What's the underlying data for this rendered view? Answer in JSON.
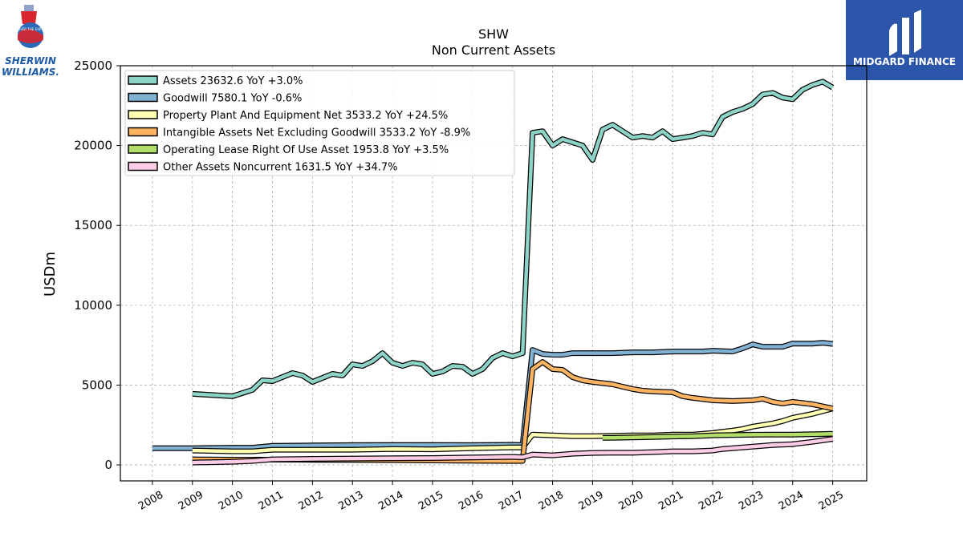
{
  "brand": {
    "left_logo_line1": "SHERWIN",
    "left_logo_line2": "WILLIAMS.",
    "left_logo_seal": "COVER THE EARTH",
    "right_logo_name": "MIDGARD FINANCE",
    "right_logo_bg": "#2a55a8"
  },
  "chart_data": {
    "type": "line",
    "title": "SHW",
    "subtitle": "Non Current  Assets",
    "ylabel": "USDm",
    "xlabel": "",
    "ylim": [
      -1000,
      25000
    ],
    "xlim": [
      2007.2,
      2025.85
    ],
    "yticks": [
      0,
      5000,
      10000,
      15000,
      20000,
      25000
    ],
    "xticks": [
      "2008",
      "2009",
      "2010",
      "2011",
      "2012",
      "2013",
      "2014",
      "2015",
      "2016",
      "2017",
      "2018",
      "2019",
      "2020",
      "2021",
      "2022",
      "2023",
      "2024",
      "2025"
    ],
    "grid": true,
    "legend_position": "top-left",
    "series": [
      {
        "name": "Assets  23632.6 YoY +3.0%",
        "color": "#8dd3c7",
        "points": [
          [
            2009.0,
            4450
          ],
          [
            2010.0,
            4300
          ],
          [
            2010.5,
            4700
          ],
          [
            2010.75,
            5300
          ],
          [
            2011.0,
            5250
          ],
          [
            2011.5,
            5750
          ],
          [
            2011.75,
            5600
          ],
          [
            2012.0,
            5200
          ],
          [
            2012.5,
            5700
          ],
          [
            2012.75,
            5600
          ],
          [
            2013.0,
            6300
          ],
          [
            2013.25,
            6200
          ],
          [
            2013.5,
            6500
          ],
          [
            2013.75,
            7000
          ],
          [
            2014.0,
            6400
          ],
          [
            2014.25,
            6200
          ],
          [
            2014.5,
            6400
          ],
          [
            2014.75,
            6300
          ],
          [
            2015.0,
            5700
          ],
          [
            2015.25,
            5850
          ],
          [
            2015.5,
            6200
          ],
          [
            2015.75,
            6150
          ],
          [
            2016.0,
            5700
          ],
          [
            2016.25,
            6000
          ],
          [
            2016.5,
            6700
          ],
          [
            2016.75,
            7000
          ],
          [
            2017.0,
            6800
          ],
          [
            2017.25,
            7000
          ],
          [
            2017.5,
            20800
          ],
          [
            2017.75,
            20900
          ],
          [
            2018.0,
            20000
          ],
          [
            2018.25,
            20400
          ],
          [
            2018.5,
            20200
          ],
          [
            2018.75,
            20000
          ],
          [
            2019.0,
            19100
          ],
          [
            2019.25,
            21000
          ],
          [
            2019.5,
            21300
          ],
          [
            2019.75,
            20900
          ],
          [
            2020.0,
            20500
          ],
          [
            2020.25,
            20600
          ],
          [
            2020.5,
            20500
          ],
          [
            2020.75,
            20900
          ],
          [
            2021.0,
            20400
          ],
          [
            2021.25,
            20500
          ],
          [
            2021.5,
            20600
          ],
          [
            2021.75,
            20800
          ],
          [
            2022.0,
            20700
          ],
          [
            2022.25,
            21800
          ],
          [
            2022.5,
            22100
          ],
          [
            2022.75,
            22300
          ],
          [
            2023.0,
            22600
          ],
          [
            2023.25,
            23200
          ],
          [
            2023.5,
            23300
          ],
          [
            2023.75,
            23000
          ],
          [
            2024.0,
            22900
          ],
          [
            2024.25,
            23500
          ],
          [
            2024.5,
            23800
          ],
          [
            2024.75,
            24000
          ],
          [
            2025.0,
            23632.6
          ]
        ]
      },
      {
        "name": "Goodwill  7580.1 YoY -0.6%",
        "color": "#80b1d3",
        "points": [
          [
            2008.0,
            1050
          ],
          [
            2009.0,
            1050
          ],
          [
            2010.0,
            1080
          ],
          [
            2010.5,
            1080
          ],
          [
            2011.0,
            1200
          ],
          [
            2012.0,
            1220
          ],
          [
            2013.0,
            1240
          ],
          [
            2014.0,
            1250
          ],
          [
            2015.0,
            1250
          ],
          [
            2016.0,
            1240
          ],
          [
            2017.0,
            1260
          ],
          [
            2017.25,
            1250
          ],
          [
            2017.5,
            7200
          ],
          [
            2017.75,
            6950
          ],
          [
            2018.0,
            6900
          ],
          [
            2018.25,
            6900
          ],
          [
            2018.5,
            7000
          ],
          [
            2019.0,
            7000
          ],
          [
            2019.5,
            7000
          ],
          [
            2020.0,
            7050
          ],
          [
            2020.5,
            7050
          ],
          [
            2021.0,
            7100
          ],
          [
            2021.5,
            7100
          ],
          [
            2021.75,
            7100
          ],
          [
            2022.0,
            7150
          ],
          [
            2022.5,
            7100
          ],
          [
            2022.75,
            7300
          ],
          [
            2023.0,
            7550
          ],
          [
            2023.25,
            7400
          ],
          [
            2023.75,
            7400
          ],
          [
            2024.0,
            7600
          ],
          [
            2024.5,
            7600
          ],
          [
            2024.75,
            7650
          ],
          [
            2025.0,
            7580.1
          ]
        ]
      },
      {
        "name": "Property Plant And Equipment Net  3533.2 YoY +24.5%",
        "color": "#ffffb3",
        "points": [
          [
            2009.0,
            900
          ],
          [
            2010.0,
            850
          ],
          [
            2010.5,
            850
          ],
          [
            2011.0,
            950
          ],
          [
            2012.0,
            950
          ],
          [
            2013.0,
            950
          ],
          [
            2014.0,
            1000
          ],
          [
            2015.0,
            980
          ],
          [
            2016.0,
            1050
          ],
          [
            2017.0,
            1100
          ],
          [
            2017.25,
            1100
          ],
          [
            2017.5,
            1900
          ],
          [
            2018.0,
            1850
          ],
          [
            2018.5,
            1800
          ],
          [
            2019.0,
            1800
          ],
          [
            2019.5,
            1820
          ],
          [
            2020.0,
            1850
          ],
          [
            2020.5,
            1850
          ],
          [
            2021.0,
            1900
          ],
          [
            2021.5,
            1900
          ],
          [
            2022.0,
            2000
          ],
          [
            2022.5,
            2150
          ],
          [
            2022.75,
            2250
          ],
          [
            2023.0,
            2400
          ],
          [
            2023.5,
            2600
          ],
          [
            2023.75,
            2750
          ],
          [
            2024.0,
            2950
          ],
          [
            2024.5,
            3200
          ],
          [
            2025.0,
            3533.2
          ]
        ]
      },
      {
        "name": "Intangible Assets Net Excluding Goodwill  3533.2 YoY -8.9%",
        "color": "#fdb462",
        "points": [
          [
            2009.0,
            350
          ],
          [
            2010.0,
            330
          ],
          [
            2011.0,
            330
          ],
          [
            2012.0,
            320
          ],
          [
            2013.0,
            310
          ],
          [
            2014.0,
            300
          ],
          [
            2015.0,
            280
          ],
          [
            2016.0,
            260
          ],
          [
            2017.0,
            250
          ],
          [
            2017.25,
            250
          ],
          [
            2017.5,
            6000
          ],
          [
            2017.75,
            6450
          ],
          [
            2018.0,
            6000
          ],
          [
            2018.25,
            5950
          ],
          [
            2018.5,
            5500
          ],
          [
            2018.75,
            5300
          ],
          [
            2019.0,
            5200
          ],
          [
            2019.5,
            5050
          ],
          [
            2020.0,
            4750
          ],
          [
            2020.25,
            4650
          ],
          [
            2020.5,
            4600
          ],
          [
            2021.0,
            4550
          ],
          [
            2021.25,
            4300
          ],
          [
            2021.5,
            4200
          ],
          [
            2022.0,
            4050
          ],
          [
            2022.5,
            4000
          ],
          [
            2023.0,
            4050
          ],
          [
            2023.25,
            4150
          ],
          [
            2023.5,
            3950
          ],
          [
            2023.75,
            3850
          ],
          [
            2024.0,
            3950
          ],
          [
            2024.5,
            3800
          ],
          [
            2025.0,
            3533.2
          ]
        ]
      },
      {
        "name": "Operating Lease Right Of Use Asset  1953.8 YoY +3.5%",
        "color": "#b3de69",
        "points": [
          [
            2019.25,
            1700
          ],
          [
            2019.5,
            1700
          ],
          [
            2020.0,
            1720
          ],
          [
            2020.5,
            1750
          ],
          [
            2021.0,
            1780
          ],
          [
            2021.5,
            1800
          ],
          [
            2022.0,
            1850
          ],
          [
            2022.5,
            1870
          ],
          [
            2023.0,
            1890
          ],
          [
            2023.5,
            1900
          ],
          [
            2024.0,
            1900
          ],
          [
            2024.5,
            1920
          ],
          [
            2025.0,
            1953.8
          ]
        ]
      },
      {
        "name": "Other Assets Noncurrent  1631.5 YoY +34.7%",
        "color": "#fccde5",
        "points": [
          [
            2009.0,
            150
          ],
          [
            2010.0,
            200
          ],
          [
            2010.5,
            250
          ],
          [
            2011.0,
            350
          ],
          [
            2012.0,
            380
          ],
          [
            2013.0,
            400
          ],
          [
            2014.0,
            420
          ],
          [
            2015.0,
            430
          ],
          [
            2016.0,
            470
          ],
          [
            2017.0,
            500
          ],
          [
            2017.25,
            480
          ],
          [
            2017.5,
            650
          ],
          [
            2018.0,
            600
          ],
          [
            2018.5,
            700
          ],
          [
            2019.0,
            750
          ],
          [
            2019.5,
            760
          ],
          [
            2020.0,
            760
          ],
          [
            2020.5,
            800
          ],
          [
            2021.0,
            850
          ],
          [
            2021.5,
            850
          ],
          [
            2022.0,
            900
          ],
          [
            2022.25,
            1000
          ],
          [
            2022.5,
            1050
          ],
          [
            2023.0,
            1150
          ],
          [
            2023.5,
            1250
          ],
          [
            2024.0,
            1300
          ],
          [
            2024.5,
            1450
          ],
          [
            2025.0,
            1631.5
          ]
        ]
      }
    ]
  }
}
